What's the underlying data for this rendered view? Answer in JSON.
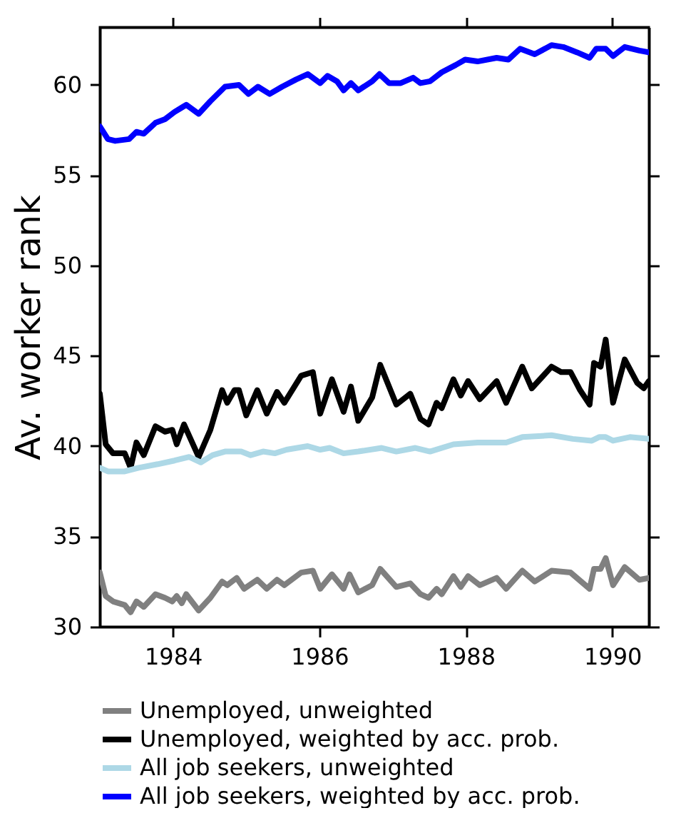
{
  "chart_data": {
    "type": "line",
    "ylabel": "Av. worker rank",
    "xlim": [
      1983,
      1990.5
    ],
    "ylim": [
      30,
      63.2
    ],
    "xticks": [
      1984,
      1986,
      1988,
      1990
    ],
    "yticks": [
      30,
      35,
      40,
      45,
      50,
      55,
      60
    ],
    "grid": false,
    "legend": "bottom",
    "marker": "none",
    "line_style": "solid",
    "series": [
      {
        "name": "Unemployed, unweighted",
        "color": "#808080",
        "x": [
          1983.0,
          1983.08,
          1983.18,
          1983.34,
          1983.42,
          1983.5,
          1983.6,
          1983.76,
          1983.89,
          1983.99,
          1984.05,
          1984.12,
          1984.18,
          1984.35,
          1984.51,
          1984.67,
          1984.74,
          1984.87,
          1984.97,
          1985.15,
          1985.28,
          1985.42,
          1985.52,
          1985.75,
          1985.91,
          1986.01,
          1986.17,
          1986.33,
          1986.41,
          1986.53,
          1986.72,
          1986.83,
          1987.05,
          1987.24,
          1987.38,
          1987.49,
          1987.6,
          1987.67,
          1987.83,
          1987.93,
          1988.03,
          1988.19,
          1988.42,
          1988.55,
          1988.77,
          1988.94,
          1989.17,
          1989.43,
          1989.69,
          1989.75,
          1989.84,
          1989.91,
          1990.01,
          1990.17,
          1990.37,
          1990.5
        ],
        "values": [
          33.0,
          31.7,
          31.4,
          31.2,
          30.8,
          31.4,
          31.1,
          31.8,
          31.6,
          31.4,
          31.7,
          31.3,
          31.8,
          30.9,
          31.6,
          32.5,
          32.3,
          32.7,
          32.1,
          32.6,
          32.1,
          32.6,
          32.3,
          33.0,
          33.1,
          32.1,
          32.9,
          32.1,
          32.9,
          31.9,
          32.3,
          33.2,
          32.2,
          32.4,
          31.8,
          31.6,
          32.1,
          31.8,
          32.8,
          32.2,
          32.8,
          32.3,
          32.7,
          32.1,
          33.1,
          32.5,
          33.1,
          33.0,
          32.1,
          33.2,
          33.2,
          33.8,
          32.3,
          33.3,
          32.6,
          32.7
        ]
      },
      {
        "name": "Unemployed, weighted by acc. prob.",
        "color": "#000000",
        "x": [
          1983.0,
          1983.08,
          1983.18,
          1983.34,
          1983.42,
          1983.5,
          1983.6,
          1983.76,
          1983.89,
          1983.99,
          1984.05,
          1984.15,
          1984.25,
          1984.35,
          1984.51,
          1984.67,
          1984.74,
          1984.84,
          1984.9,
          1985.0,
          1985.15,
          1985.28,
          1985.42,
          1985.52,
          1985.75,
          1985.91,
          1986.01,
          1986.17,
          1986.33,
          1986.43,
          1986.53,
          1986.72,
          1986.83,
          1987.05,
          1987.24,
          1987.38,
          1987.49,
          1987.6,
          1987.67,
          1987.83,
          1987.93,
          1988.03,
          1988.19,
          1988.42,
          1988.55,
          1988.77,
          1988.9,
          1989.17,
          1989.3,
          1989.43,
          1989.56,
          1989.69,
          1989.75,
          1989.84,
          1989.91,
          1990.01,
          1990.17,
          1990.34,
          1990.43,
          1990.5
        ],
        "values": [
          42.9,
          40.1,
          39.6,
          39.6,
          38.8,
          40.2,
          39.5,
          41.1,
          40.8,
          40.9,
          40.1,
          41.2,
          40.3,
          39.4,
          40.9,
          43.1,
          42.4,
          43.1,
          43.1,
          41.7,
          43.1,
          41.8,
          43.0,
          42.4,
          43.9,
          44.1,
          41.8,
          43.7,
          41.9,
          43.3,
          41.4,
          42.7,
          44.5,
          42.3,
          42.9,
          41.5,
          41.2,
          42.4,
          42.1,
          43.7,
          42.8,
          43.6,
          42.6,
          43.6,
          42.4,
          44.4,
          43.2,
          44.4,
          44.1,
          44.1,
          43.1,
          42.3,
          44.6,
          44.4,
          45.9,
          42.4,
          44.8,
          43.5,
          43.2,
          43.6
        ]
      },
      {
        "name": "All job seekers, unweighted",
        "color": "#add8e6",
        "x": [
          1983.0,
          1983.11,
          1983.34,
          1983.53,
          1983.79,
          1984.02,
          1984.22,
          1984.38,
          1984.54,
          1984.71,
          1984.93,
          1985.06,
          1985.23,
          1985.39,
          1985.55,
          1985.84,
          1986.01,
          1986.14,
          1986.33,
          1986.53,
          1986.85,
          1987.05,
          1987.31,
          1987.51,
          1987.83,
          1988.16,
          1988.55,
          1988.77,
          1989.17,
          1989.46,
          1989.72,
          1989.82,
          1989.91,
          1990.01,
          1990.24,
          1990.5
        ],
        "values": [
          38.8,
          38.6,
          38.6,
          38.8,
          39.0,
          39.2,
          39.4,
          39.1,
          39.5,
          39.7,
          39.7,
          39.5,
          39.7,
          39.6,
          39.8,
          40.0,
          39.8,
          39.9,
          39.6,
          39.7,
          39.9,
          39.7,
          39.9,
          39.7,
          40.1,
          40.2,
          40.2,
          40.5,
          40.6,
          40.4,
          40.3,
          40.5,
          40.5,
          40.3,
          40.5,
          40.4
        ]
      },
      {
        "name": "All job seekers, weighted by acc. prob.",
        "color": "#0000ff",
        "x": [
          1983.0,
          1983.11,
          1983.21,
          1983.4,
          1983.5,
          1983.6,
          1983.76,
          1983.89,
          1984.02,
          1984.18,
          1984.35,
          1984.51,
          1984.71,
          1984.9,
          1985.03,
          1985.16,
          1985.32,
          1985.49,
          1985.68,
          1985.84,
          1986.01,
          1986.11,
          1986.24,
          1986.33,
          1986.43,
          1986.53,
          1986.72,
          1986.82,
          1986.95,
          1987.11,
          1987.28,
          1987.38,
          1987.51,
          1987.67,
          1987.86,
          1987.99,
          1988.16,
          1988.42,
          1988.58,
          1988.74,
          1988.94,
          1989.17,
          1989.33,
          1989.52,
          1989.69,
          1989.78,
          1989.91,
          1990.01,
          1990.17,
          1990.37,
          1990.5
        ],
        "values": [
          57.7,
          57.0,
          56.9,
          57.0,
          57.4,
          57.3,
          57.9,
          58.1,
          58.5,
          58.9,
          58.4,
          59.1,
          59.9,
          60.0,
          59.5,
          59.9,
          59.5,
          59.9,
          60.3,
          60.6,
          60.1,
          60.5,
          60.2,
          59.7,
          60.1,
          59.7,
          60.2,
          60.6,
          60.1,
          60.1,
          60.4,
          60.1,
          60.2,
          60.7,
          61.1,
          61.4,
          61.3,
          61.5,
          61.4,
          62.0,
          61.7,
          62.2,
          62.1,
          61.8,
          61.5,
          62.0,
          62.0,
          61.6,
          62.1,
          61.9,
          61.8
        ]
      }
    ]
  }
}
